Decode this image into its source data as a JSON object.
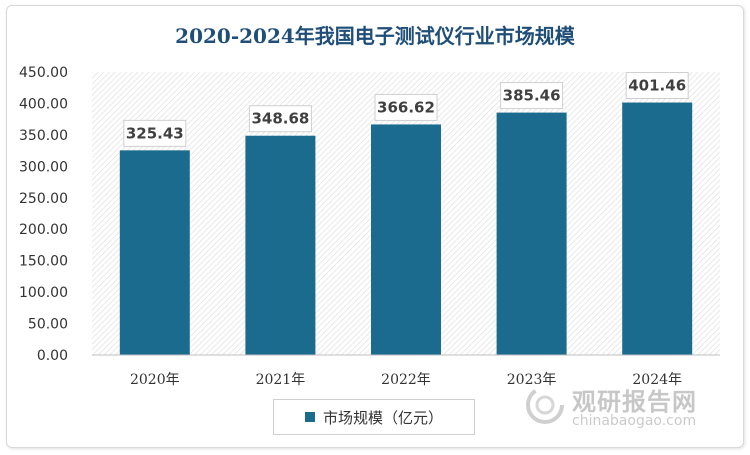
{
  "chart_data": {
    "type": "bar",
    "title": "2020-2024年我国电子测试仪行业市场规模",
    "categories": [
      "2020年",
      "2021年",
      "2022年",
      "2023年",
      "2024年"
    ],
    "series": [
      {
        "name": "市场规模（亿元）",
        "values": [
          325.43,
          348.68,
          366.62,
          385.46,
          401.46
        ]
      }
    ],
    "data_labels": [
      "325.43",
      "348.68",
      "366.62",
      "385.46",
      "401.46"
    ],
    "yticks": [
      "0.00",
      "50.00",
      "100.00",
      "150.00",
      "200.00",
      "250.00",
      "300.00",
      "350.00",
      "400.00",
      "450.00"
    ],
    "ylim": [
      0,
      450
    ],
    "grid": false,
    "legend_position": "bottom"
  },
  "colors": {
    "bar": "#1b6b8f",
    "title": "#1f4e79",
    "plot_hatch": "#e3e3e3"
  },
  "watermark": {
    "cn": "观研报告网",
    "en": "chinabaogao.com",
    "icon": "chinabaogao-logo-icon"
  }
}
